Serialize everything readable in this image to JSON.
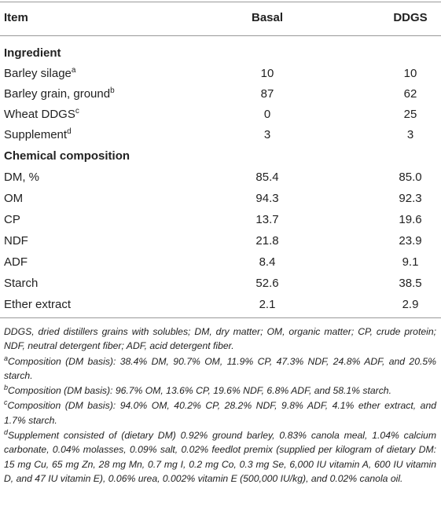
{
  "header": {
    "item": "Item",
    "basal": "Basal",
    "ddgs": "DDGS"
  },
  "sections": [
    {
      "title": "Ingredient",
      "rows": [
        {
          "item": "Barley silage",
          "sup": "a",
          "basal": "10",
          "ddgs": "10"
        },
        {
          "item": "Barley grain, ground",
          "sup": "b",
          "basal": "87",
          "ddgs": "62"
        },
        {
          "item": "Wheat DDGS",
          "sup": "c",
          "basal": "0",
          "ddgs": "25"
        },
        {
          "item": "Supplement",
          "sup": "d",
          "basal": "3",
          "ddgs": "3"
        }
      ]
    },
    {
      "title": "Chemical composition",
      "rows": [
        {
          "item": "DM, %",
          "sup": "",
          "basal": "85.4",
          "ddgs": "85.0"
        },
        {
          "item": "OM",
          "sup": "",
          "basal": "94.3",
          "ddgs": "92.3"
        },
        {
          "item": "CP",
          "sup": "",
          "basal": "13.7",
          "ddgs": "19.6"
        },
        {
          "item": "NDF",
          "sup": "",
          "basal": "21.8",
          "ddgs": "23.9"
        },
        {
          "item": "ADF",
          "sup": "",
          "basal": "8.4",
          "ddgs": "9.1"
        },
        {
          "item": "Starch",
          "sup": "",
          "basal": "52.6",
          "ddgs": "38.5"
        },
        {
          "item": "Ether extract",
          "sup": "",
          "basal": "2.1",
          "ddgs": "2.9"
        }
      ]
    }
  ],
  "footnotes": [
    {
      "sup": "",
      "text": "DDGS, dried distillers grains with solubles; DM, dry matter; OM, organic matter; CP, crude protein; NDF, neutral detergent fiber; ADF, acid detergent fiber."
    },
    {
      "sup": "a",
      "text": "Composition (DM basis): 38.4% DM, 90.7% OM, 11.9% CP, 47.3% NDF, 24.8% ADF, and 20.5% starch."
    },
    {
      "sup": "b",
      "text": "Composition (DM basis): 96.7% OM, 13.6% CP, 19.6% NDF, 6.8% ADF, and 58.1% starch."
    },
    {
      "sup": "c",
      "text": "Composition (DM basis): 94.0% OM, 40.2% CP, 28.2% NDF, 9.8% ADF, 4.1% ether extract, and 1.7% starch."
    },
    {
      "sup": "d",
      "text": "Supplement consisted of (dietary DM) 0.92% ground barley, 0.83% canola meal, 1.04% calcium carbonate, 0.04% molasses, 0.09% salt, 0.02% feedlot premix (supplied per kilogram of dietary DM: 15 mg Cu, 65 mg Zn, 28 mg Mn, 0.7 mg I, 0.2 mg Co, 0.3 mg Se, 6,000 IU vitamin A, 600 IU vitamin D, and 47 IU vitamin E), 0.06% urea, 0.002% vitamin E (500,000 IU/kg), and 0.02% canola oil."
    }
  ]
}
